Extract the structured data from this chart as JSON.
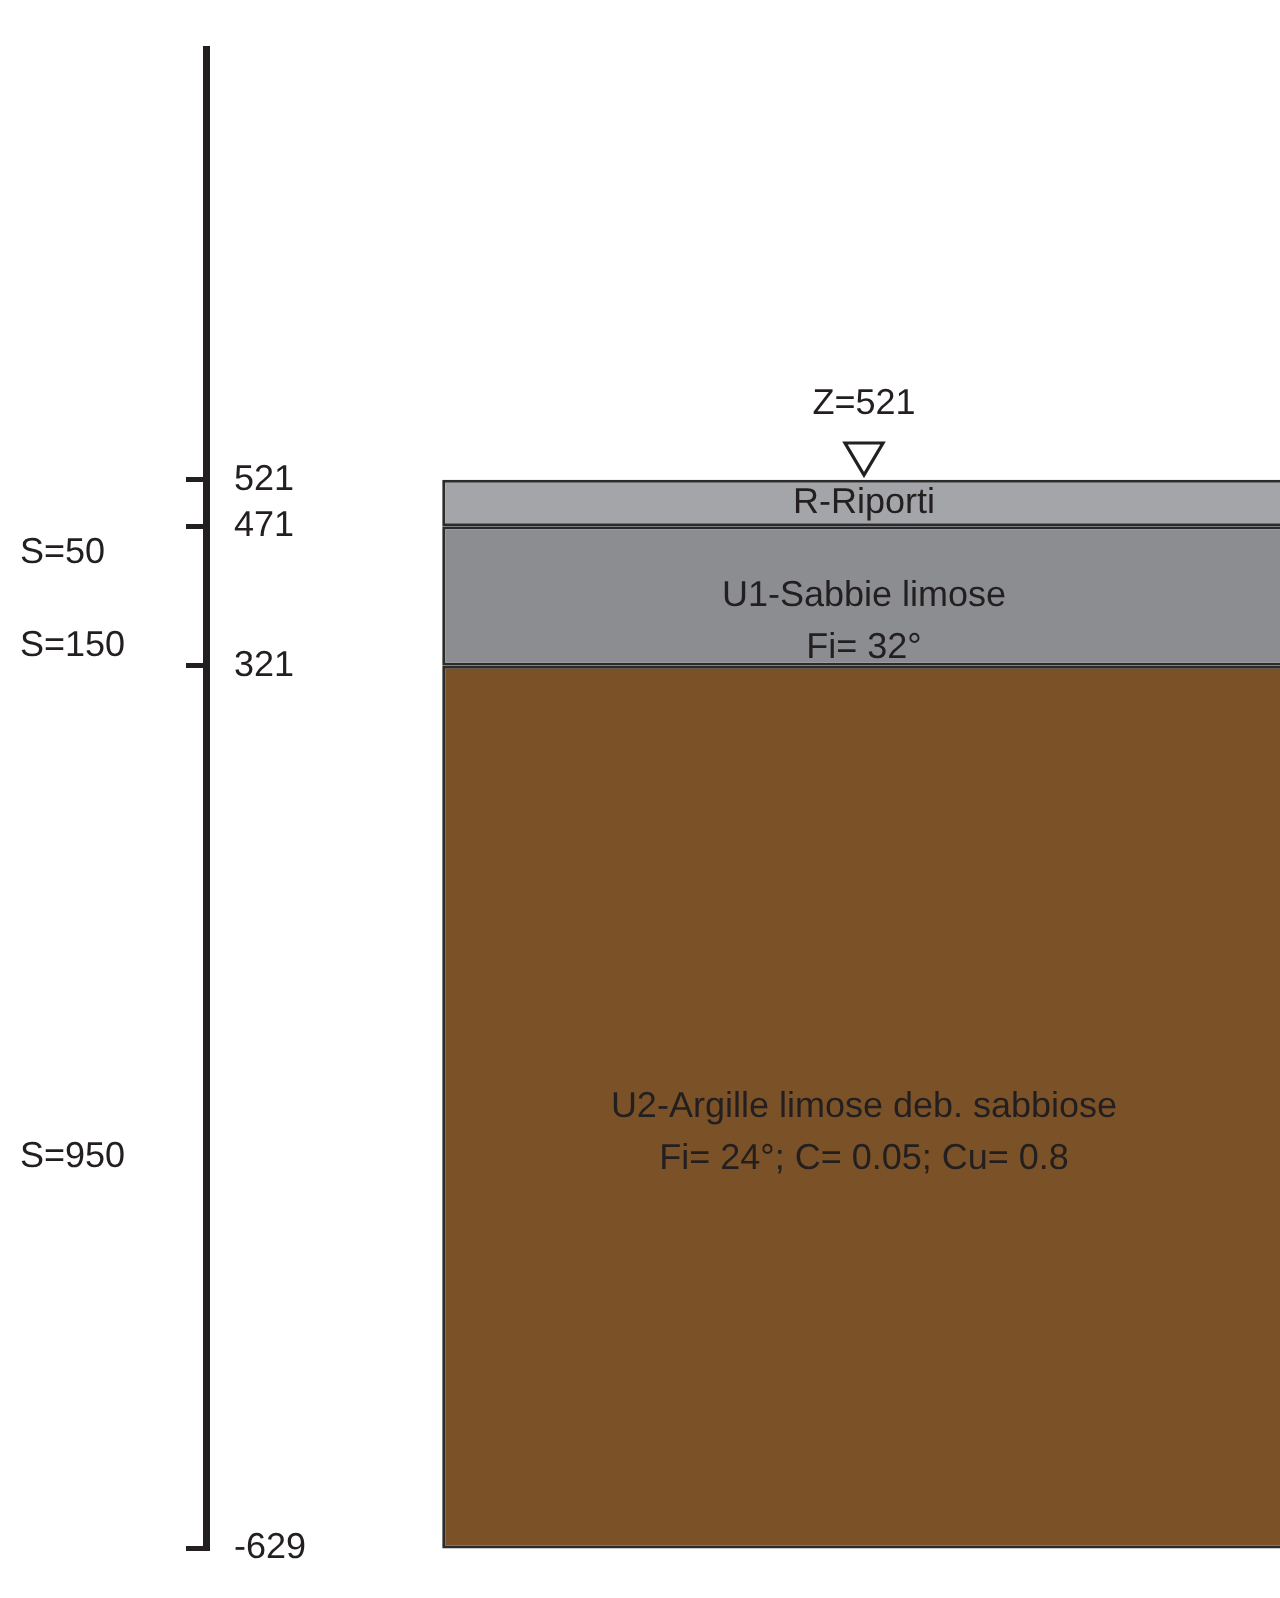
{
  "chart_data": {
    "type": "bar",
    "categories": [
      null
    ],
    "ylim": [
      -629,
      984
    ],
    "yticks": [
      521,
      471,
      321,
      -629
    ],
    "series": [
      {
        "name": "R-Riporti",
        "color": "#a3a5a8",
        "values": [
          50
        ],
        "base": [
          471
        ]
      },
      {
        "name": "U1-Sabbie limose",
        "color": "#8c8d90",
        "values": [
          150
        ],
        "base": [
          321
        ]
      },
      {
        "name": "U2-Argille limose deb. sabbiose",
        "color": "#7b5227",
        "values": [
          950
        ],
        "base": [
          -629
        ]
      }
    ],
    "annotations": [
      "S=50",
      "S=150",
      "S=950",
      "Fi= 32°",
      "Fi= 24°; C= 0.05; Cu= 0.8",
      "Z=521"
    ]
  }
}
